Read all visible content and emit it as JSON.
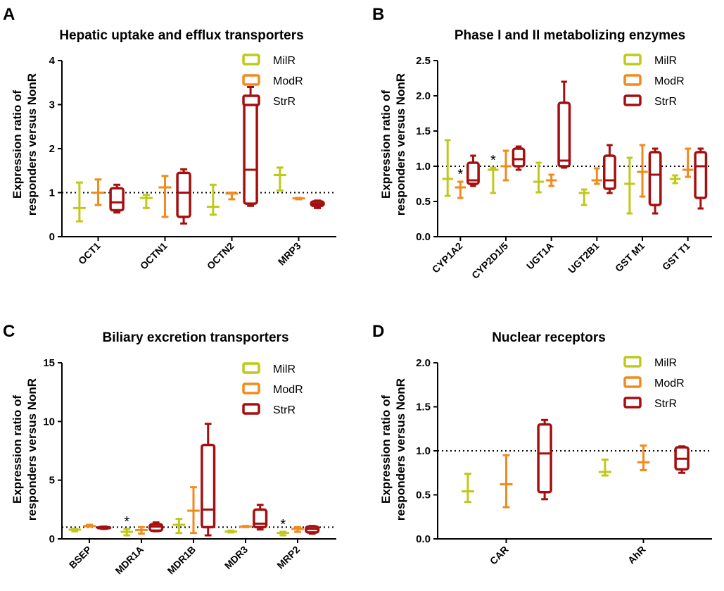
{
  "colors": {
    "MilR": "#bfc91a",
    "ModR": "#f28a1c",
    "StrR": "#a50f0f"
  },
  "chart_data": [
    {
      "id": "A",
      "panel_label": "A",
      "type": "box",
      "title": "Hepatic uptake and efflux transporters",
      "ylabel_line1": "Expression ratio of",
      "ylabel_line2": "responders versus NonR",
      "ylim": [
        0,
        4
      ],
      "yticks": [
        0,
        1,
        2,
        3,
        4
      ],
      "reference_line": 1,
      "legend_position": "top-right",
      "legend": [
        "MilR",
        "ModR",
        "StrR"
      ],
      "categories": [
        "OCT1",
        "OCTN1",
        "OCTN2",
        "MRP3"
      ],
      "groups": [
        {
          "category": "OCT1",
          "boxes": [
            {
              "series": "MilR",
              "min": 0.35,
              "q1": 0.65,
              "median": 0.65,
              "q3": 0.65,
              "max": 1.23
            },
            {
              "series": "ModR",
              "min": 0.72,
              "q1": 1.0,
              "median": 1.0,
              "q3": 1.0,
              "max": 1.3
            },
            {
              "series": "StrR",
              "min": 0.55,
              "q1": 0.6,
              "median": 0.78,
              "q3": 1.1,
              "max": 1.18
            }
          ],
          "stars": []
        },
        {
          "category": "OCTN1",
          "boxes": [
            {
              "series": "MilR",
              "min": 0.65,
              "q1": 0.88,
              "median": 0.88,
              "q3": 0.88,
              "max": 0.95
            },
            {
              "series": "ModR",
              "min": 0.45,
              "q1": 1.12,
              "median": 1.12,
              "q3": 1.12,
              "max": 1.38
            },
            {
              "series": "StrR",
              "min": 0.3,
              "q1": 0.45,
              "median": 1.0,
              "q3": 1.45,
              "max": 1.53
            }
          ],
          "stars": []
        },
        {
          "category": "OCTN2",
          "boxes": [
            {
              "series": "MilR",
              "min": 0.5,
              "q1": 0.68,
              "median": 0.68,
              "q3": 0.68,
              "max": 1.18
            },
            {
              "series": "ModR",
              "min": 0.85,
              "q1": 0.98,
              "median": 0.98,
              "q3": 0.98,
              "max": 1.0
            },
            {
              "series": "StrR",
              "min": 0.7,
              "q1": 0.75,
              "median": 1.52,
              "q3": 3.05,
              "max": 3.4
            }
          ],
          "stars": []
        },
        {
          "category": "MRP3",
          "boxes": [
            {
              "series": "MilR",
              "min": 1.05,
              "q1": 1.4,
              "median": 1.4,
              "q3": 1.4,
              "max": 1.57
            },
            {
              "series": "ModR",
              "min": 0.85,
              "q1": 0.87,
              "median": 0.87,
              "q3": 0.87,
              "max": 0.88
            },
            {
              "series": "StrR",
              "min": 0.65,
              "q1": 0.7,
              "median": 0.75,
              "q3": 0.8,
              "max": 0.82
            }
          ],
          "stars": []
        }
      ]
    },
    {
      "id": "B",
      "panel_label": "B",
      "type": "box",
      "title": "Phase I and II metabolizing enzymes",
      "ylabel_line1": "Expression ratio of",
      "ylabel_line2": "responders versus NonR",
      "ylim": [
        0,
        2.5
      ],
      "yticks": [
        "0.0",
        "0.5",
        "1.0",
        "1.5",
        "2.0",
        "2.5"
      ],
      "reference_line": 1,
      "legend_position": "top-right",
      "legend": [
        "MilR",
        "ModR",
        "StrR"
      ],
      "categories": [
        "CYP1A2",
        "CYP2D1/5",
        "UGT1A",
        "UGT2B1",
        "GST M1",
        "GST T1"
      ],
      "groups": [
        {
          "category": "CYP1A2",
          "boxes": [
            {
              "series": "MilR",
              "min": 0.58,
              "q1": 0.82,
              "median": 0.82,
              "q3": 0.82,
              "max": 1.37
            },
            {
              "series": "ModR",
              "min": 0.55,
              "q1": 0.7,
              "median": 0.7,
              "q3": 0.7,
              "max": 0.78
            },
            {
              "series": "StrR",
              "min": 0.72,
              "q1": 0.75,
              "median": 0.8,
              "q3": 1.05,
              "max": 1.15
            }
          ],
          "stars": [
            {
              "series": "ModR",
              "text": "*"
            }
          ]
        },
        {
          "category": "CYP2D1/5",
          "boxes": [
            {
              "series": "MilR",
              "min": 0.62,
              "q1": 0.95,
              "median": 0.95,
              "q3": 0.95,
              "max": 0.98
            },
            {
              "series": "ModR",
              "min": 0.8,
              "q1": 1.0,
              "median": 1.0,
              "q3": 1.0,
              "max": 1.22
            },
            {
              "series": "StrR",
              "min": 0.95,
              "q1": 1.0,
              "median": 1.1,
              "q3": 1.25,
              "max": 1.28
            }
          ],
          "stars": [
            {
              "series": "MilR",
              "text": "*"
            }
          ]
        },
        {
          "category": "UGT1A",
          "boxes": [
            {
              "series": "MilR",
              "min": 0.63,
              "q1": 0.78,
              "median": 0.78,
              "q3": 0.78,
              "max": 1.05
            },
            {
              "series": "ModR",
              "min": 0.72,
              "q1": 0.8,
              "median": 0.8,
              "q3": 0.8,
              "max": 0.88
            },
            {
              "series": "StrR",
              "min": 0.98,
              "q1": 1.0,
              "median": 1.08,
              "q3": 1.9,
              "max": 2.2
            }
          ],
          "stars": []
        },
        {
          "category": "UGT2B1",
          "boxes": [
            {
              "series": "MilR",
              "min": 0.45,
              "q1": 0.62,
              "median": 0.62,
              "q3": 0.62,
              "max": 0.67
            },
            {
              "series": "ModR",
              "min": 0.75,
              "q1": 0.8,
              "median": 0.8,
              "q3": 0.8,
              "max": 0.97
            },
            {
              "series": "StrR",
              "min": 0.62,
              "q1": 0.68,
              "median": 0.8,
              "q3": 1.15,
              "max": 1.3
            }
          ],
          "stars": []
        },
        {
          "category": "GST M1",
          "boxes": [
            {
              "series": "MilR",
              "min": 0.33,
              "q1": 0.75,
              "median": 0.75,
              "q3": 0.75,
              "max": 1.12
            },
            {
              "series": "ModR",
              "min": 0.57,
              "q1": 0.92,
              "median": 0.92,
              "q3": 0.92,
              "max": 1.3
            },
            {
              "series": "StrR",
              "min": 0.33,
              "q1": 0.45,
              "median": 0.88,
              "q3": 1.2,
              "max": 1.25
            }
          ],
          "stars": []
        },
        {
          "category": "GST T1",
          "boxes": [
            {
              "series": "MilR",
              "min": 0.76,
              "q1": 0.82,
              "median": 0.82,
              "q3": 0.82,
              "max": 0.87
            },
            {
              "series": "ModR",
              "min": 0.85,
              "q1": 0.95,
              "median": 0.95,
              "q3": 0.95,
              "max": 1.25
            },
            {
              "series": "StrR",
              "min": 0.4,
              "q1": 0.55,
              "median": 1.0,
              "q3": 1.2,
              "max": 1.25
            }
          ],
          "stars": []
        }
      ]
    },
    {
      "id": "C",
      "panel_label": "C",
      "type": "box",
      "title": "Biliary excretion transporters",
      "ylabel_line1": "Expression ratio of",
      "ylabel_line2": "responders versus NonR",
      "ylim": [
        0,
        15
      ],
      "yticks": [
        0,
        5,
        10,
        15
      ],
      "reference_line": 1,
      "legend_position": "top-right",
      "legend": [
        "MilR",
        "ModR",
        "StrR"
      ],
      "categories": [
        "BSEP",
        "MDR1A",
        "MDR1B",
        "MDR3",
        "MRP2"
      ],
      "groups": [
        {
          "category": "BSEP",
          "boxes": [
            {
              "series": "MilR",
              "min": 0.65,
              "q1": 0.78,
              "median": 0.78,
              "q3": 0.78,
              "max": 0.85
            },
            {
              "series": "ModR",
              "min": 1.05,
              "q1": 1.1,
              "median": 1.1,
              "q3": 1.1,
              "max": 1.2
            },
            {
              "series": "StrR",
              "min": 0.85,
              "q1": 0.9,
              "median": 0.95,
              "q3": 1.0,
              "max": 1.05
            }
          ],
          "stars": []
        },
        {
          "category": "MDR1A",
          "boxes": [
            {
              "series": "MilR",
              "min": 0.3,
              "q1": 0.6,
              "median": 0.6,
              "q3": 0.6,
              "max": 0.85
            },
            {
              "series": "ModR",
              "min": 0.45,
              "q1": 0.75,
              "median": 0.75,
              "q3": 0.75,
              "max": 1.0
            },
            {
              "series": "StrR",
              "min": 0.65,
              "q1": 0.7,
              "median": 1.05,
              "q3": 1.25,
              "max": 1.4
            }
          ],
          "stars": [
            {
              "series": "MilR",
              "text": "*"
            }
          ]
        },
        {
          "category": "MDR1B",
          "boxes": [
            {
              "series": "MilR",
              "min": 0.5,
              "q1": 1.2,
              "median": 1.2,
              "q3": 1.2,
              "max": 1.7
            },
            {
              "series": "ModR",
              "min": 0.5,
              "q1": 2.4,
              "median": 2.4,
              "q3": 2.4,
              "max": 4.4
            },
            {
              "series": "StrR",
              "min": 0.3,
              "q1": 1.0,
              "median": 2.5,
              "q3": 8.0,
              "max": 9.8
            }
          ],
          "stars": []
        },
        {
          "category": "MDR3",
          "boxes": [
            {
              "series": "MilR",
              "min": 0.55,
              "q1": 0.62,
              "median": 0.62,
              "q3": 0.62,
              "max": 0.7
            },
            {
              "series": "ModR",
              "min": 1.0,
              "q1": 1.05,
              "median": 1.05,
              "q3": 1.05,
              "max": 1.1
            },
            {
              "series": "StrR",
              "min": 0.8,
              "q1": 1.0,
              "median": 1.3,
              "q3": 2.5,
              "max": 2.9
            }
          ],
          "stars": []
        },
        {
          "category": "MRP2",
          "boxes": [
            {
              "series": "MilR",
              "min": 0.3,
              "q1": 0.5,
              "median": 0.5,
              "q3": 0.5,
              "max": 0.6
            },
            {
              "series": "ModR",
              "min": 0.6,
              "q1": 0.85,
              "median": 0.85,
              "q3": 0.85,
              "max": 1.0
            },
            {
              "series": "StrR",
              "min": 0.45,
              "q1": 0.55,
              "median": 0.85,
              "q3": 1.05,
              "max": 1.1
            }
          ],
          "stars": [
            {
              "series": "MilR",
              "text": "*"
            }
          ]
        }
      ]
    },
    {
      "id": "D",
      "panel_label": "D",
      "type": "box",
      "title": "Nuclear receptors",
      "ylabel_line1": "Expression ratio of",
      "ylabel_line2": "responders versus NonR",
      "ylim": [
        0,
        2
      ],
      "yticks": [
        "0.0",
        "0.5",
        "1.0",
        "1.5",
        "2.0"
      ],
      "reference_line": 1,
      "legend_position": "top-right",
      "legend": [
        "MilR",
        "ModR",
        "StrR"
      ],
      "categories": [
        "CAR",
        "AhR"
      ],
      "groups": [
        {
          "category": "CAR",
          "boxes": [
            {
              "series": "MilR",
              "min": 0.42,
              "q1": 0.54,
              "median": 0.54,
              "q3": 0.54,
              "max": 0.74
            },
            {
              "series": "ModR",
              "min": 0.36,
              "q1": 0.62,
              "median": 0.62,
              "q3": 0.62,
              "max": 0.95
            },
            {
              "series": "StrR",
              "min": 0.45,
              "q1": 0.53,
              "median": 0.97,
              "q3": 1.3,
              "max": 1.35
            }
          ],
          "stars": []
        },
        {
          "category": "AhR",
          "boxes": [
            {
              "series": "MilR",
              "min": 0.72,
              "q1": 0.76,
              "median": 0.76,
              "q3": 0.76,
              "max": 0.9
            },
            {
              "series": "ModR",
              "min": 0.78,
              "q1": 0.87,
              "median": 0.87,
              "q3": 0.87,
              "max": 1.06
            },
            {
              "series": "StrR",
              "min": 0.75,
              "q1": 0.79,
              "median": 0.91,
              "q3": 1.04,
              "max": 1.05
            }
          ],
          "stars": []
        }
      ]
    }
  ]
}
